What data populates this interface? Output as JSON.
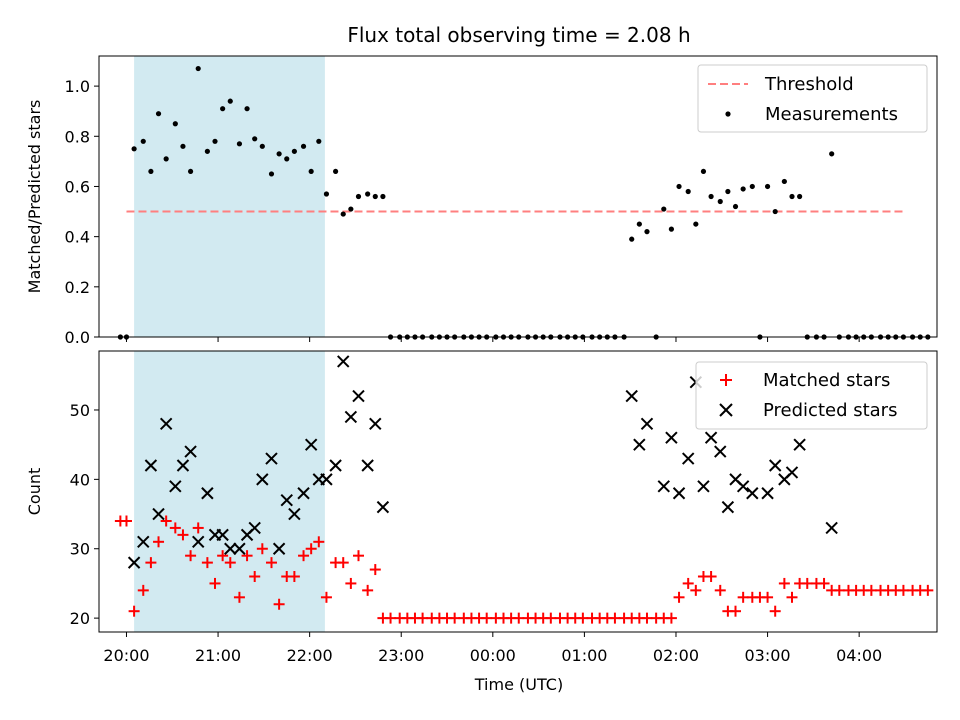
{
  "chart_data": [
    {
      "type": "scatter",
      "title": "Flux total observing time = 2.08 h",
      "xlabel": "",
      "ylabel": "Matched/Predicted stars",
      "x_unit": "time of day (UTC), evening 20:00 through 04:00 next morning",
      "ylim": [
        0,
        1.12
      ],
      "yticks": [
        "0.0",
        "0.2",
        "0.4",
        "0.6",
        "0.8",
        "1.0"
      ],
      "xticks": [
        "20:00",
        "21:00",
        "22:00",
        "23:00",
        "00:00",
        "01:00",
        "02:00",
        "03:00",
        "04:00"
      ],
      "shaded_interval": [
        "20:05",
        "22:10"
      ],
      "shade_color": "#add8e6",
      "threshold": {
        "y": 0.5,
        "from": "20:00",
        "to": "04:30",
        "color": "#ff7f7f"
      },
      "legend": {
        "position": "top-right",
        "entries": [
          "Threshold",
          "Measurements"
        ]
      },
      "series": [
        {
          "name": "Measurements",
          "marker": "dot",
          "color": "#000000",
          "points": [
            [
              "19:56",
              0
            ],
            [
              "20:00",
              0
            ],
            [
              "20:05",
              0.75
            ],
            [
              "20:11",
              0.78
            ],
            [
              "20:16",
              0.66
            ],
            [
              "20:21",
              0.89
            ],
            [
              "20:26",
              0.71
            ],
            [
              "20:32",
              0.85
            ],
            [
              "20:37",
              0.76
            ],
            [
              "20:42",
              0.66
            ],
            [
              "20:47",
              1.07
            ],
            [
              "20:53",
              0.74
            ],
            [
              "20:58",
              0.78
            ],
            [
              "21:03",
              0.91
            ],
            [
              "21:08",
              0.94
            ],
            [
              "21:14",
              0.77
            ],
            [
              "21:19",
              0.91
            ],
            [
              "21:24",
              0.79
            ],
            [
              "21:29",
              0.76
            ],
            [
              "21:35",
              0.65
            ],
            [
              "21:40",
              0.73
            ],
            [
              "21:45",
              0.71
            ],
            [
              "21:50",
              0.74
            ],
            [
              "21:56",
              0.76
            ],
            [
              "22:01",
              0.66
            ],
            [
              "22:06",
              0.78
            ],
            [
              "22:11",
              0.57
            ],
            [
              "22:17",
              0.66
            ],
            [
              "22:22",
              0.49
            ],
            [
              "22:27",
              0.51
            ],
            [
              "22:32",
              0.56
            ],
            [
              "22:38",
              0.57
            ],
            [
              "22:43",
              0.56
            ],
            [
              "22:48",
              0.56
            ],
            [
              "22:53",
              0
            ],
            [
              "22:59",
              0
            ],
            [
              "23:04",
              0
            ],
            [
              "23:09",
              0
            ],
            [
              "23:14",
              0
            ],
            [
              "23:20",
              0
            ],
            [
              "23:25",
              0
            ],
            [
              "23:30",
              0
            ],
            [
              "23:35",
              0
            ],
            [
              "23:41",
              0
            ],
            [
              "23:46",
              0
            ],
            [
              "23:51",
              0
            ],
            [
              "23:56",
              0
            ],
            [
              "00:02",
              0
            ],
            [
              "00:07",
              0
            ],
            [
              "00:12",
              0
            ],
            [
              "00:17",
              0
            ],
            [
              "00:23",
              0
            ],
            [
              "00:28",
              0
            ],
            [
              "00:33",
              0
            ],
            [
              "00:38",
              0
            ],
            [
              "00:44",
              0
            ],
            [
              "00:49",
              0
            ],
            [
              "00:54",
              0
            ],
            [
              "00:59",
              0
            ],
            [
              "01:05",
              0
            ],
            [
              "01:10",
              0
            ],
            [
              "01:15",
              0
            ],
            [
              "01:20",
              0
            ],
            [
              "01:26",
              0
            ],
            [
              "01:31",
              0.39
            ],
            [
              "01:36",
              0.45
            ],
            [
              "01:41",
              0.42
            ],
            [
              "01:47",
              0
            ],
            [
              "01:52",
              0.51
            ],
            [
              "01:57",
              0.43
            ],
            [
              "02:02",
              0.6
            ],
            [
              "02:08",
              0.58
            ],
            [
              "02:13",
              0.45
            ],
            [
              "02:18",
              0.66
            ],
            [
              "02:23",
              0.56
            ],
            [
              "02:29",
              0.54
            ],
            [
              "02:34",
              0.58
            ],
            [
              "02:39",
              0.52
            ],
            [
              "02:44",
              0.59
            ],
            [
              "02:50",
              0.6
            ],
            [
              "02:55",
              0
            ],
            [
              "03:00",
              0.6
            ],
            [
              "03:05",
              0.5
            ],
            [
              "03:11",
              0.62
            ],
            [
              "03:16",
              0.56
            ],
            [
              "03:21",
              0.56
            ],
            [
              "03:26",
              0
            ],
            [
              "03:32",
              0
            ],
            [
              "03:37",
              0
            ],
            [
              "03:42",
              0.73
            ],
            [
              "03:47",
              0
            ],
            [
              "03:53",
              0
            ],
            [
              "03:58",
              0
            ],
            [
              "04:03",
              0
            ],
            [
              "04:08",
              0
            ],
            [
              "04:14",
              0
            ],
            [
              "04:19",
              0
            ],
            [
              "04:24",
              0
            ],
            [
              "04:29",
              0
            ],
            [
              "04:35",
              0
            ],
            [
              "04:40",
              0
            ],
            [
              "04:45",
              0
            ]
          ]
        }
      ]
    },
    {
      "type": "scatter",
      "title": "",
      "xlabel": "Time (UTC)",
      "ylabel": "Count",
      "ylim": [
        18,
        58.5
      ],
      "yticks": [
        "20",
        "30",
        "40",
        "50"
      ],
      "xticks": [
        "20:00",
        "21:00",
        "22:00",
        "23:00",
        "00:00",
        "01:00",
        "02:00",
        "03:00",
        "04:00"
      ],
      "shaded_interval": [
        "20:05",
        "22:10"
      ],
      "shade_color": "#add8e6",
      "legend": {
        "position": "top-right",
        "entries": [
          "Matched stars",
          "Predicted stars"
        ]
      },
      "series": [
        {
          "name": "Matched stars",
          "marker": "plus",
          "color": "#ff0000",
          "points": [
            [
              "19:56",
              34
            ],
            [
              "20:00",
              34
            ],
            [
              "20:05",
              21
            ],
            [
              "20:11",
              24
            ],
            [
              "20:16",
              28
            ],
            [
              "20:21",
              31
            ],
            [
              "20:26",
              34
            ],
            [
              "20:32",
              33
            ],
            [
              "20:37",
              32
            ],
            [
              "20:42",
              29
            ],
            [
              "20:47",
              33
            ],
            [
              "20:53",
              28
            ],
            [
              "20:58",
              25
            ],
            [
              "21:03",
              29
            ],
            [
              "21:08",
              28
            ],
            [
              "21:14",
              23
            ],
            [
              "21:19",
              29
            ],
            [
              "21:24",
              26
            ],
            [
              "21:29",
              30
            ],
            [
              "21:35",
              28
            ],
            [
              "21:40",
              22
            ],
            [
              "21:45",
              26
            ],
            [
              "21:50",
              26
            ],
            [
              "21:56",
              29
            ],
            [
              "22:01",
              30
            ],
            [
              "22:06",
              31
            ],
            [
              "22:11",
              23
            ],
            [
              "22:17",
              28
            ],
            [
              "22:22",
              28
            ],
            [
              "22:27",
              25
            ],
            [
              "22:32",
              29
            ],
            [
              "22:38",
              24
            ],
            [
              "22:43",
              27
            ],
            [
              "22:48",
              20
            ],
            [
              "22:53",
              20
            ],
            [
              "22:59",
              20
            ],
            [
              "23:04",
              20
            ],
            [
              "23:09",
              20
            ],
            [
              "23:14",
              20
            ],
            [
              "23:20",
              20
            ],
            [
              "23:25",
              20
            ],
            [
              "23:30",
              20
            ],
            [
              "23:35",
              20
            ],
            [
              "23:41",
              20
            ],
            [
              "23:46",
              20
            ],
            [
              "23:51",
              20
            ],
            [
              "23:56",
              20
            ],
            [
              "00:02",
              20
            ],
            [
              "00:07",
              20
            ],
            [
              "00:12",
              20
            ],
            [
              "00:17",
              20
            ],
            [
              "00:23",
              20
            ],
            [
              "00:28",
              20
            ],
            [
              "00:33",
              20
            ],
            [
              "00:38",
              20
            ],
            [
              "00:44",
              20
            ],
            [
              "00:49",
              20
            ],
            [
              "00:54",
              20
            ],
            [
              "00:59",
              20
            ],
            [
              "01:05",
              20
            ],
            [
              "01:10",
              20
            ],
            [
              "01:15",
              20
            ],
            [
              "01:20",
              20
            ],
            [
              "01:26",
              20
            ],
            [
              "01:31",
              20
            ],
            [
              "01:36",
              20
            ],
            [
              "01:41",
              20
            ],
            [
              "01:47",
              20
            ],
            [
              "01:52",
              20
            ],
            [
              "01:57",
              20
            ],
            [
              "02:02",
              23
            ],
            [
              "02:08",
              25
            ],
            [
              "02:13",
              24
            ],
            [
              "02:18",
              26
            ],
            [
              "02:23",
              26
            ],
            [
              "02:29",
              24
            ],
            [
              "02:34",
              21
            ],
            [
              "02:39",
              21
            ],
            [
              "02:44",
              23
            ],
            [
              "02:50",
              23
            ],
            [
              "02:55",
              23
            ],
            [
              "03:00",
              23
            ],
            [
              "03:05",
              21
            ],
            [
              "03:11",
              25
            ],
            [
              "03:16",
              23
            ],
            [
              "03:21",
              25
            ],
            [
              "03:26",
              25
            ],
            [
              "03:32",
              25
            ],
            [
              "03:37",
              25
            ],
            [
              "03:42",
              24
            ],
            [
              "03:47",
              24
            ],
            [
              "03:53",
              24
            ],
            [
              "03:58",
              24
            ],
            [
              "04:03",
              24
            ],
            [
              "04:08",
              24
            ],
            [
              "04:14",
              24
            ],
            [
              "04:19",
              24
            ],
            [
              "04:24",
              24
            ],
            [
              "04:29",
              24
            ],
            [
              "04:35",
              24
            ],
            [
              "04:40",
              24
            ],
            [
              "04:45",
              24
            ]
          ]
        },
        {
          "name": "Predicted stars",
          "marker": "x",
          "color": "#000000",
          "points": [
            [
              "20:05",
              28
            ],
            [
              "20:11",
              31
            ],
            [
              "20:16",
              42
            ],
            [
              "20:21",
              35
            ],
            [
              "20:26",
              48
            ],
            [
              "20:32",
              39
            ],
            [
              "20:37",
              42
            ],
            [
              "20:42",
              44
            ],
            [
              "20:47",
              31
            ],
            [
              "20:53",
              38
            ],
            [
              "20:58",
              32
            ],
            [
              "21:03",
              32
            ],
            [
              "21:08",
              30
            ],
            [
              "21:14",
              30
            ],
            [
              "21:19",
              32
            ],
            [
              "21:24",
              33
            ],
            [
              "21:29",
              40
            ],
            [
              "21:35",
              43
            ],
            [
              "21:40",
              30
            ],
            [
              "21:45",
              37
            ],
            [
              "21:50",
              35
            ],
            [
              "21:56",
              38
            ],
            [
              "22:01",
              45
            ],
            [
              "22:06",
              40
            ],
            [
              "22:11",
              40
            ],
            [
              "22:17",
              42
            ],
            [
              "22:22",
              57
            ],
            [
              "22:27",
              49
            ],
            [
              "22:32",
              52
            ],
            [
              "22:38",
              42
            ],
            [
              "22:43",
              48
            ],
            [
              "22:48",
              36
            ],
            [
              "01:31",
              52
            ],
            [
              "01:36",
              45
            ],
            [
              "01:41",
              48
            ],
            [
              "01:52",
              39
            ],
            [
              "01:57",
              46
            ],
            [
              "02:02",
              38
            ],
            [
              "02:08",
              43
            ],
            [
              "02:13",
              54
            ],
            [
              "02:18",
              39
            ],
            [
              "02:23",
              46
            ],
            [
              "02:29",
              44
            ],
            [
              "02:34",
              36
            ],
            [
              "02:39",
              40
            ],
            [
              "02:44",
              39
            ],
            [
              "02:50",
              38
            ],
            [
              "03:00",
              38
            ],
            [
              "03:05",
              42
            ],
            [
              "03:11",
              40
            ],
            [
              "03:16",
              41
            ],
            [
              "03:21",
              45
            ],
            [
              "03:42",
              33
            ]
          ]
        }
      ]
    }
  ]
}
